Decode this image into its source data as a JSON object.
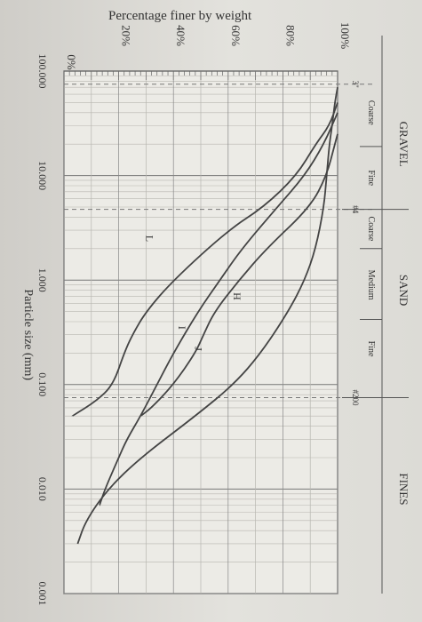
{
  "chart_data": {
    "type": "line",
    "title": "",
    "ylabel": "Percentage finer by weight",
    "xlabel": "Particle size (mm)",
    "x_scale": "log",
    "xlim": [
      100,
      0.001
    ],
    "ylim": [
      0,
      100
    ],
    "x_ticks": [
      "100.000",
      "10.000",
      "1.000",
      "0.100",
      "0.010",
      "0.001"
    ],
    "y_ticks": [
      "0%",
      "20%",
      "40%",
      "60%",
      "80%",
      "100%"
    ],
    "grid": true,
    "soil_classes": {
      "fines": "FINES",
      "sand": "SAND",
      "gravel": "GRAVEL",
      "sand_subs": [
        "Fine",
        "Medium",
        "Coarse"
      ],
      "gravel_subs": [
        "Fine",
        "Coarse"
      ],
      "sieves": [
        "#200",
        "#4",
        "3\""
      ]
    },
    "series": [
      {
        "name": "H",
        "x": [
          70,
          50,
          30,
          20,
          10,
          5,
          2,
          1,
          0.5,
          0.2,
          0.1,
          0.05,
          0.02,
          0.01,
          0.005,
          0.003
        ],
        "y": [
          100,
          99,
          98,
          97,
          96,
          95,
          92,
          88,
          82,
          72,
          62,
          48,
          28,
          16,
          8,
          5
        ]
      },
      {
        "name": "I",
        "x": [
          50,
          30,
          20,
          10,
          5,
          3,
          1,
          0.5,
          0.3,
          0.2,
          0.1,
          0.07,
          0.05
        ],
        "y": [
          100,
          97,
          92,
          85,
          73,
          60,
          40,
          30,
          25,
          22,
          18,
          12,
          3
        ]
      },
      {
        "name": "J",
        "x": [
          25,
          20,
          10,
          5,
          2,
          1,
          0.5,
          0.3,
          0.2,
          0.1,
          0.06,
          0.05
        ],
        "y": [
          100,
          99,
          96,
          90,
          74,
          64,
          55,
          51,
          48,
          40,
          32,
          28
        ]
      },
      {
        "name": "L",
        "x": [
          40,
          20,
          10,
          5,
          2,
          1,
          0.5,
          0.2,
          0.1,
          0.05,
          0.03,
          0.02,
          0.01,
          0.007
        ],
        "y": [
          100,
          95,
          88,
          78,
          65,
          57,
          49,
          40,
          34,
          28,
          23,
          20,
          15,
          13
        ]
      }
    ]
  }
}
